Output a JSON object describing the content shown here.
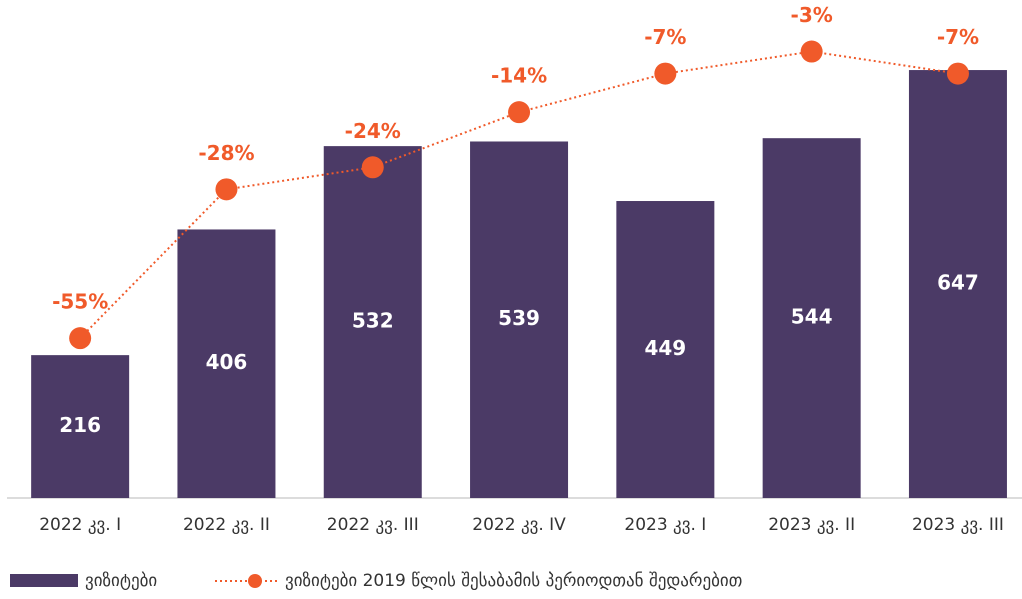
{
  "chart_data": {
    "type": "bar",
    "categories": [
      "2022 კვ. I",
      "2022 კვ. II",
      "2022 კვ. III",
      "2022 კვ. IV",
      "2023 კვ. I",
      "2023 კვ. II",
      "2023 კვ. III"
    ],
    "series": [
      {
        "name": "ვიზიტები",
        "type": "bar",
        "color": "#4b3a66",
        "values": [
          216,
          406,
          532,
          539,
          449,
          544,
          647
        ]
      },
      {
        "name": "ვიზიტები 2019 წლის შესაბამის პერიოდთან შედარებით",
        "type": "line",
        "axis": "y2",
        "color": "#f05a2a",
        "values": [
          -55,
          -28,
          -24,
          -14,
          -7,
          -3,
          -7
        ],
        "value_labels": [
          "-55%",
          "-28%",
          "-24%",
          "-14%",
          "-7%",
          "-3%",
          "-7%"
        ]
      }
    ],
    "ylim": [
      0,
      700
    ],
    "y2lim": [
      -84,
      0
    ]
  }
}
